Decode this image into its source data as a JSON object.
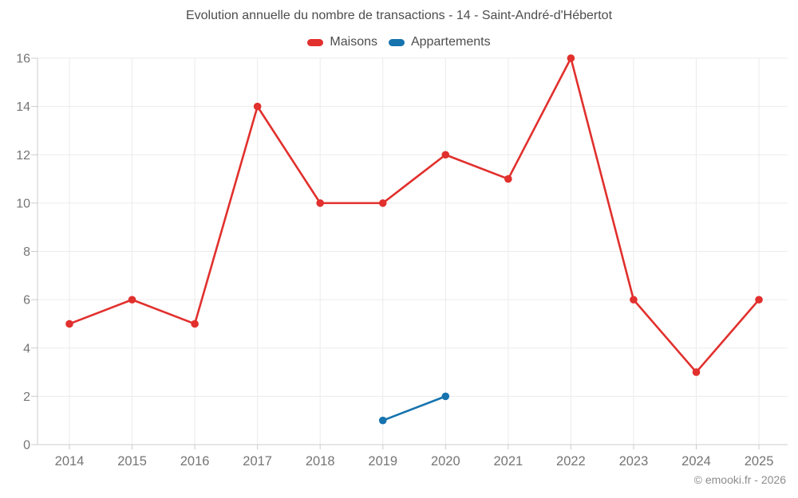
{
  "title": "Evolution annuelle du nombre de transactions - 14 - Saint-André-d'Hébertot",
  "copyright": "© emooki.fr - 2026",
  "colors": {
    "maisons": "#e1302d",
    "appartements": "#1673ae",
    "grid": "#ebebeb",
    "axis": "#cccccc",
    "tick_label": "#757575",
    "title_text": "#4d4d4d",
    "copyright_text": "#8c8c8c"
  },
  "chart_data": {
    "type": "line",
    "title": "Evolution annuelle du nombre de transactions - 14 - Saint-André-d'Hébertot",
    "x": [
      2014,
      2015,
      2016,
      2017,
      2018,
      2019,
      2020,
      2021,
      2022,
      2023,
      2024,
      2025
    ],
    "series": [
      {
        "name": "Maisons",
        "color": "#e1302d",
        "x": [
          2014,
          2015,
          2016,
          2017,
          2018,
          2019,
          2020,
          2021,
          2022,
          2023,
          2024,
          2025
        ],
        "values": [
          5,
          6,
          5,
          14,
          10,
          10,
          12,
          11,
          16,
          6,
          3,
          6
        ]
      },
      {
        "name": "Appartements",
        "color": "#1673ae",
        "x": [
          2019,
          2020
        ],
        "values": [
          1,
          2
        ]
      }
    ],
    "xlabel": "",
    "ylabel": "",
    "ylim": [
      0,
      16
    ],
    "yticks": [
      0,
      2,
      4,
      6,
      8,
      10,
      12,
      14,
      16
    ],
    "grid": true,
    "legend_position": "top"
  }
}
